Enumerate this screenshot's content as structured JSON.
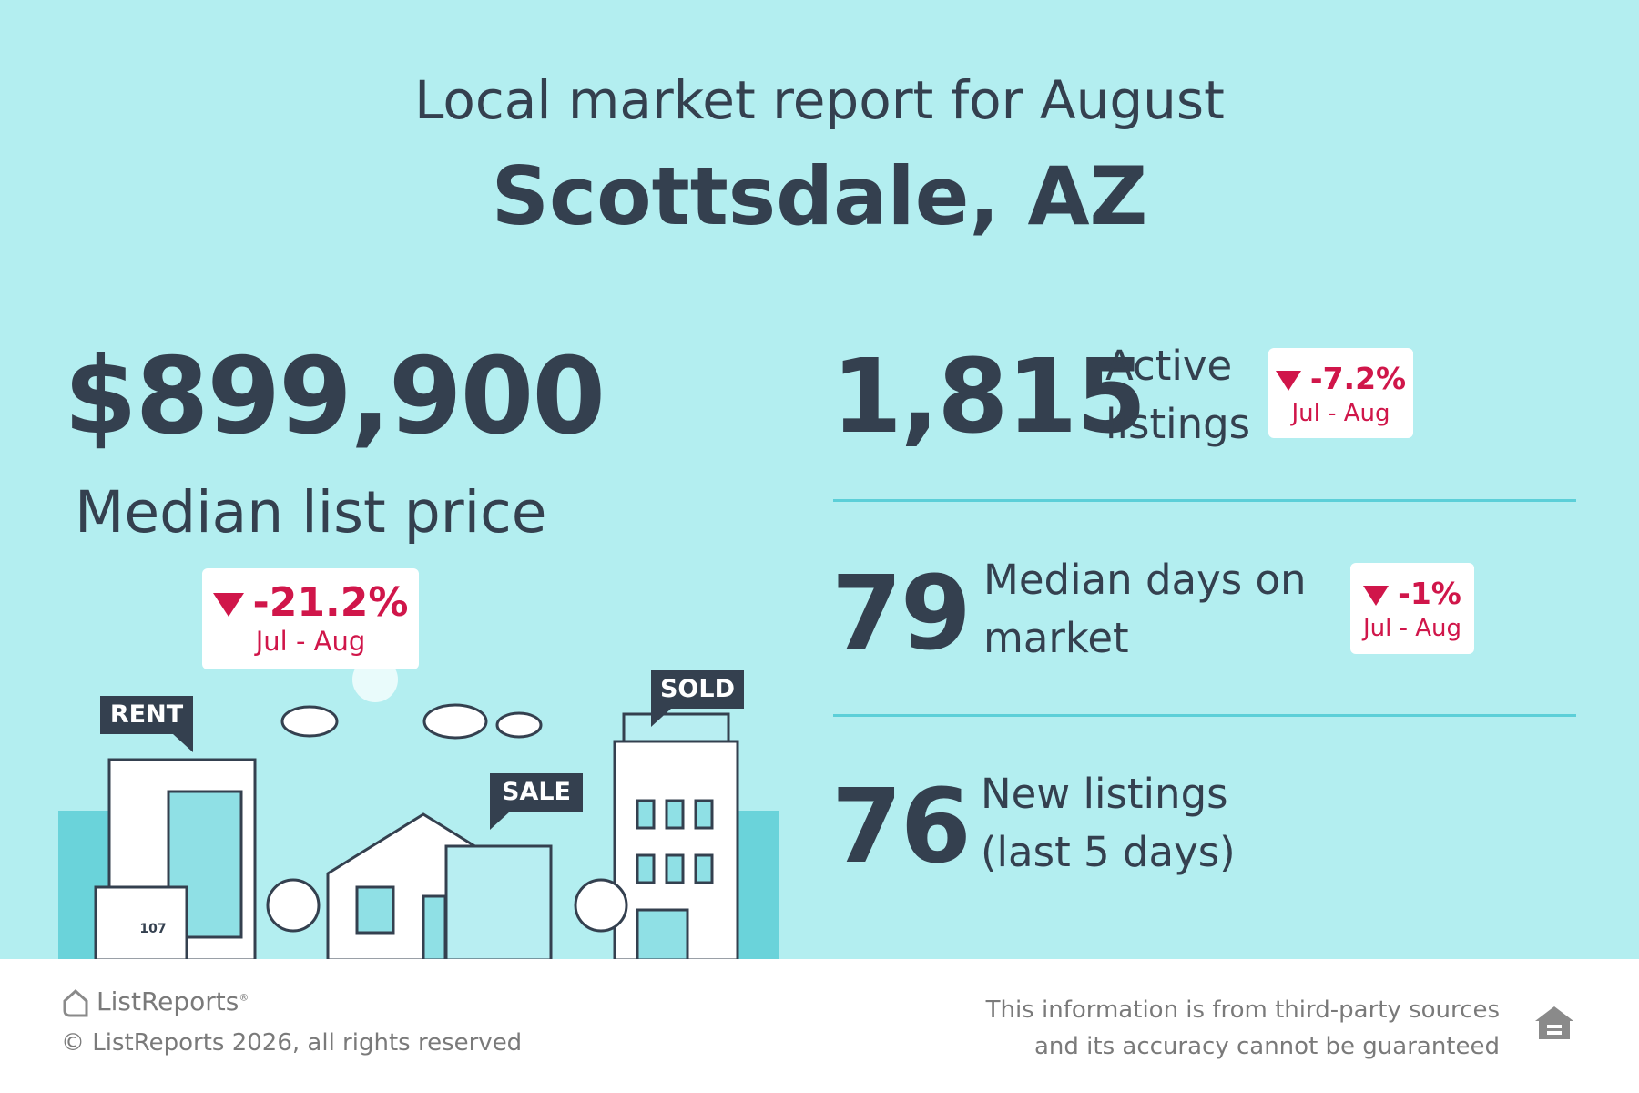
{
  "header": {
    "title": "Local market report for August",
    "location": "Scottsdale, AZ"
  },
  "main_stat": {
    "value": "$899,900",
    "label": "Median list price",
    "change": "-21.2%",
    "period": "Jul - Aug"
  },
  "stats": [
    {
      "value": "1,815",
      "label_lines": [
        "Active",
        "listings"
      ],
      "change": "-7.2%",
      "period": "Jul - Aug"
    },
    {
      "value": "79",
      "label_lines": [
        "Median days on",
        "market"
      ],
      "change": "-1%",
      "period": "Jul - Aug"
    },
    {
      "value": "76",
      "label_lines": [
        "New listings",
        "(last 5 days)"
      ]
    }
  ],
  "illustration": {
    "signs": [
      "RENT",
      "SALE",
      "SOLD"
    ],
    "house_number": "107"
  },
  "footer": {
    "brand": "ListReports",
    "brand_mark": "®",
    "copyright": "© ListReports 2026, all rights reserved",
    "disclaimer_lines": [
      "This information is from third-party sources",
      "and its accuracy cannot be guaranteed"
    ]
  }
}
